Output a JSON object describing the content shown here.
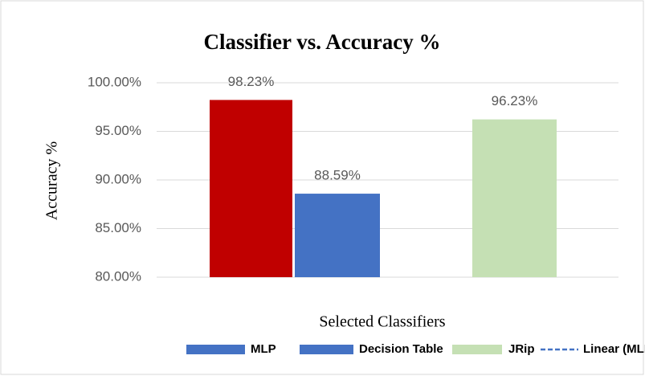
{
  "chart_data": {
    "type": "bar",
    "title": "Classifier vs. Accuracy %",
    "x_label": "Selected Classifiers",
    "y_label": "Accuracy %",
    "series": [
      {
        "name": "MLP",
        "color": "#c00000",
        "legend_color": "#4472c4",
        "values": [
          98.23
        ],
        "value_labels": [
          "98.23%"
        ]
      },
      {
        "name": "Decision Table",
        "color": "#4472c4",
        "values": [
          88.59
        ],
        "value_labels": [
          "88.59%"
        ]
      },
      {
        "name": "JRip",
        "color": "#c5e0b4",
        "values": [
          96.23
        ],
        "value_labels": [
          "96.23%"
        ]
      }
    ],
    "trendline": {
      "name": "Linear (MLP)",
      "color": "#4472c4",
      "dashed": true
    },
    "ylim": [
      80,
      100
    ],
    "yticks": [
      {
        "value": 80,
        "label": "80.00%"
      },
      {
        "value": 85,
        "label": "85.00%"
      },
      {
        "value": 90,
        "label": "90.00%"
      },
      {
        "value": 95,
        "label": "95.00%"
      },
      {
        "value": 100,
        "label": "100.00%"
      }
    ],
    "grid": true
  }
}
